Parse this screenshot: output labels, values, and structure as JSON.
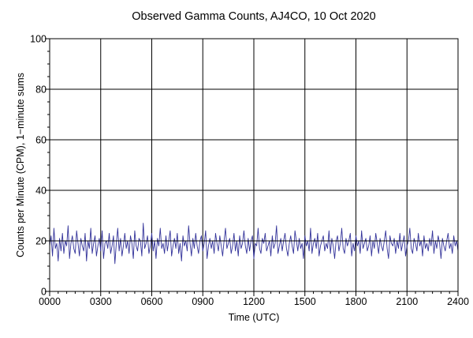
{
  "chart_data": {
    "type": "line",
    "title": "Observed Gamma Counts, AJ4CO, 10 Oct 2020",
    "xlabel": "Time (UTC)",
    "ylabel": "Counts per Minute (CPM), 1−minute sums",
    "xlim": [
      0,
      1440
    ],
    "ylim": [
      0,
      100
    ],
    "x_ticks": [
      {
        "value": 0,
        "label": "0000"
      },
      {
        "value": 180,
        "label": "0300"
      },
      {
        "value": 360,
        "label": "0600"
      },
      {
        "value": 540,
        "label": "0900"
      },
      {
        "value": 720,
        "label": "1200"
      },
      {
        "value": 900,
        "label": "1500"
      },
      {
        "value": 1080,
        "label": "1800"
      },
      {
        "value": 1260,
        "label": "2100"
      },
      {
        "value": 1440,
        "label": "2400"
      }
    ],
    "y_ticks": [
      {
        "value": 0,
        "label": "0"
      },
      {
        "value": 20,
        "label": "20"
      },
      {
        "value": 40,
        "label": "40"
      },
      {
        "value": 60,
        "label": "60"
      },
      {
        "value": 80,
        "label": "80"
      },
      {
        "value": 100,
        "label": "100"
      }
    ],
    "grid": true,
    "reference_line": {
      "y": 20
    },
    "series": [
      {
        "color": "#33339a",
        "x_units": "minutes after 0000 UTC",
        "x_start": 0,
        "x_step": 5,
        "values": [
          18,
          22,
          14,
          25,
          17,
          19,
          12,
          21,
          16,
          23,
          15,
          20,
          18,
          26,
          13,
          19,
          22,
          17,
          15,
          24,
          19,
          14,
          21,
          18,
          16,
          23,
          12,
          20,
          17,
          25,
          15,
          19,
          22,
          14,
          18,
          21,
          16,
          24,
          13,
          19,
          20,
          17,
          23,
          15,
          18,
          22,
          11,
          19,
          25,
          16,
          21,
          14,
          18,
          23,
          17,
          20,
          15,
          22,
          19,
          13,
          24,
          18,
          16,
          21,
          20,
          14,
          27,
          17,
          19,
          22,
          15,
          18,
          23,
          16,
          20,
          13,
          21,
          18,
          25,
          17,
          19,
          15,
          22,
          16,
          20,
          24,
          14,
          18,
          21,
          17,
          23,
          15,
          19,
          12,
          22,
          18,
          20,
          16,
          26,
          19,
          14,
          21,
          17,
          23,
          18,
          15,
          20,
          22,
          16,
          19,
          24,
          13,
          18,
          21,
          17,
          20,
          15,
          23,
          19,
          16,
          22,
          18,
          14,
          20,
          25,
          17,
          19,
          21,
          15,
          18,
          23,
          16,
          20,
          14,
          22,
          17,
          19,
          24,
          18,
          15,
          21,
          16,
          20,
          22,
          13,
          19,
          18,
          25,
          17,
          15,
          21,
          19,
          23,
          16,
          18,
          20,
          14,
          22,
          17,
          19,
          26,
          15,
          18,
          21,
          16,
          20,
          23,
          17,
          14,
          19,
          22,
          18,
          15,
          24,
          20,
          16,
          21,
          17,
          19,
          13,
          22,
          18,
          20,
          16,
          25,
          15,
          19,
          21,
          17,
          23,
          14,
          18,
          20,
          22,
          16,
          19,
          17,
          24,
          15,
          21,
          18,
          13,
          20,
          22,
          16,
          19,
          25,
          17,
          15,
          21,
          18,
          20,
          23,
          14,
          19,
          16,
          22,
          18,
          20,
          15,
          24,
          17,
          19,
          21,
          16,
          18,
          22,
          14,
          20,
          17,
          23,
          19,
          15,
          21,
          18,
          16,
          20,
          24,
          17,
          13,
          22,
          19,
          18,
          21,
          15,
          20,
          17,
          23,
          16,
          19,
          22,
          14,
          18,
          20,
          25,
          17,
          15,
          21,
          19,
          16,
          23,
          18,
          20,
          14,
          22,
          17,
          19,
          16,
          21,
          18,
          24,
          15,
          20,
          17,
          22,
          19,
          13,
          21,
          18,
          16,
          20,
          23,
          17,
          19,
          15,
          22,
          18,
          20,
          16,
          24,
          19,
          14,
          21,
          17,
          23,
          18,
          15,
          20,
          22,
          16,
          19,
          25,
          17,
          14,
          21,
          18,
          20,
          23,
          16,
          19,
          15,
          22,
          18,
          21,
          17,
          20,
          24,
          16,
          19,
          14,
          22,
          18,
          20,
          17,
          23,
          15,
          19,
          21,
          16,
          18,
          22,
          20,
          12,
          19,
          17,
          24,
          18,
          21,
          15,
          8
        ]
      }
    ]
  }
}
